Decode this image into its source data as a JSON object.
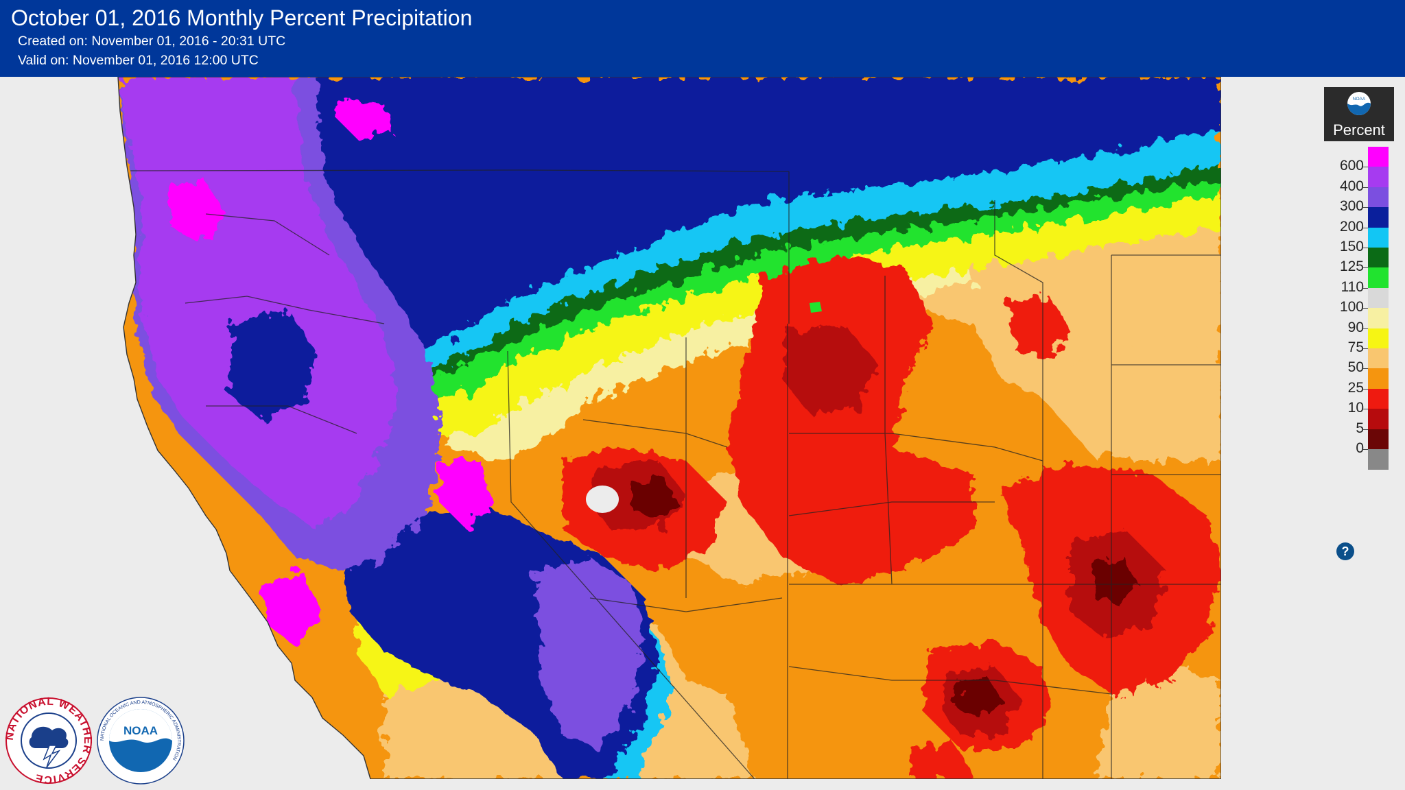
{
  "header": {
    "title": "October 01, 2016 Monthly Percent Precipitation",
    "created": "Created on: November 01, 2016 - 20:31 UTC",
    "valid": "Valid on: November 01, 2016 12:00 UTC"
  },
  "legend": {
    "badge_label": "Percent",
    "badge_logo_text": "NOAA",
    "help_label": "?",
    "stops": [
      {
        "label": "600",
        "color": "#ff00ff"
      },
      {
        "label": "400",
        "color": "#a63bf0"
      },
      {
        "label": "300",
        "color": "#7b4fe0"
      },
      {
        "label": "200",
        "color": "#0a1f9c"
      },
      {
        "label": "150",
        "color": "#12c6f4"
      },
      {
        "label": "125",
        "color": "#0b6b16"
      },
      {
        "label": "110",
        "color": "#21e32f"
      },
      {
        "label": "100",
        "color": "#d9d9d9"
      },
      {
        "label": "90",
        "color": "#f7f0a2"
      },
      {
        "label": "75",
        "color": "#f6f514"
      },
      {
        "label": "50",
        "color": "#f9c66f"
      },
      {
        "label": "25",
        "color": "#f5950f"
      },
      {
        "label": "10",
        "color": "#ef1a10"
      },
      {
        "label": "5",
        "color": "#b60b0d"
      },
      {
        "label": "0",
        "color": "#6b0606"
      },
      {
        "label": "",
        "color": "#888888"
      }
    ]
  },
  "logos": {
    "nws_text": "NATIONAL WEATHER SERVICE",
    "noaa_text": "NOAA",
    "noaa_ring_text": "NATIONAL OCEANIC AND ATMOSPHERIC ADMINISTRATION"
  },
  "map_colors": {
    "magenta": "#ff00ff",
    "violet": "#a63bf0",
    "purple": "#7b4fe0",
    "navy": "#0a1f9c",
    "cyan": "#12c6f4",
    "darkgreen": "#0b6b16",
    "green": "#21e32f",
    "lightyellow": "#f7f0a2",
    "yellow": "#f6f514",
    "tan": "#f9c66f",
    "orange": "#f5950f",
    "red": "#ef1a10",
    "darkred": "#b60b0d",
    "maroon": "#6b0606",
    "ocean": "#ececec",
    "outside": "#ececec"
  }
}
